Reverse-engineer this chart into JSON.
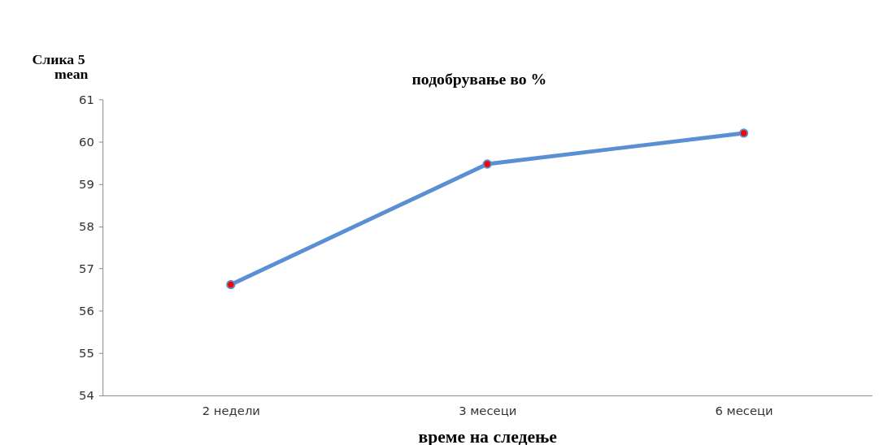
{
  "chart_data": {
    "type": "line",
    "title": "подобрување во %",
    "xlabel": "време на следење",
    "ylabel": "mean",
    "annotations": [
      "Слика 5"
    ],
    "categories": [
      "2 недели",
      "3 месеци",
      "6 месеци"
    ],
    "series": [
      {
        "color": "#5b8fd4",
        "values": [
          56.62,
          59.47,
          60.2
        ]
      }
    ],
    "ylim": [
      54,
      61
    ],
    "yticks": [
      54,
      55,
      56,
      57,
      58,
      59,
      60,
      61
    ],
    "grid": false,
    "marker": "circle",
    "line_style": "solid"
  }
}
